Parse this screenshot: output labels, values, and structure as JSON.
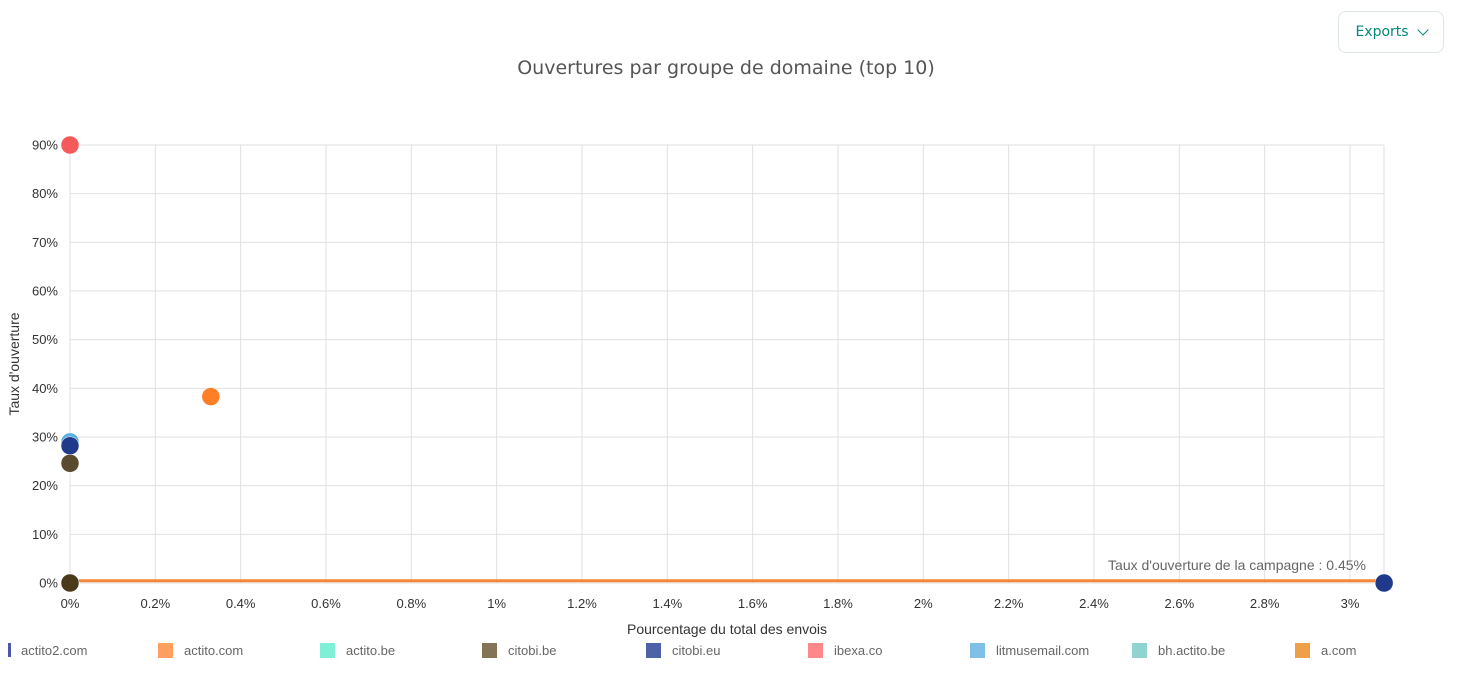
{
  "toolbar": {
    "exports_label": "Exports",
    "exports_icon": "chevron-down-icon"
  },
  "chart_data": {
    "type": "scatter",
    "title": "Ouvertures par groupe de domaine (top 10)",
    "xlabel": "Pourcentage du total des envois",
    "ylabel": "Taux d'ouverture",
    "xlim": [
      0,
      3.1
    ],
    "ylim": [
      0,
      90
    ],
    "x_ticks": [
      0,
      0.2,
      0.4,
      0.6,
      0.8,
      1,
      1.2,
      1.4,
      1.6,
      1.8,
      2,
      2.2,
      2.4,
      2.6,
      2.8,
      3
    ],
    "x_tick_labels": [
      "0%",
      "0.2%",
      "0.4%",
      "0.6%",
      "0.8%",
      "1%",
      "1.2%",
      "1.4%",
      "1.6%",
      "1.8%",
      "2%",
      "2.2%",
      "2.4%",
      "2.6%",
      "2.8%",
      "3%"
    ],
    "y_ticks": [
      0,
      10,
      20,
      30,
      40,
      50,
      60,
      70,
      80,
      90
    ],
    "y_tick_labels": [
      "0%",
      "10%",
      "20%",
      "30%",
      "40%",
      "50%",
      "60%",
      "70%",
      "80%",
      "90%"
    ],
    "grid": true,
    "legend_position": "bottom",
    "series": [
      {
        "name": "actito2.com",
        "color": "#1f3a8a",
        "legend_color": "#4a5aa8",
        "x": 3.08,
        "y": 0
      },
      {
        "name": "actito.com",
        "color": "#ff7f27",
        "legend_color": "#ff9f5f",
        "x": 0.33,
        "y": 38.3
      },
      {
        "name": "actito.be",
        "color": "#5ee8cc",
        "legend_color": "#7fefd6",
        "x": 0,
        "y": 0
      },
      {
        "name": "citobi.be",
        "color": "#5a4a2e",
        "legend_color": "#857356",
        "x": 0,
        "y": 24.6
      },
      {
        "name": "citobi.eu",
        "color": "#1f3a8a",
        "legend_color": "#4e62a6",
        "x": 0,
        "y": 28.2
      },
      {
        "name": "ibexa.co",
        "color": "#f55a5a",
        "legend_color": "#ff8888",
        "x": 0,
        "y": 90
      },
      {
        "name": "litmusemail.com",
        "color": "#5aaee0",
        "legend_color": "#7fc0e8",
        "x": 0,
        "y": 29
      },
      {
        "name": "bh.actito.be",
        "color": "#70c8c0",
        "legend_color": "#8fd4ce",
        "x": 0,
        "y": 0
      },
      {
        "name": "a.com",
        "color": "#4a3a1a",
        "legend_color": "#ee9f48",
        "x": 0,
        "y": 0
      }
    ],
    "reference_line": {
      "label": "Taux d'ouverture de la campagne : 0.45%",
      "y": 0.45,
      "color": "#f5873a"
    }
  }
}
